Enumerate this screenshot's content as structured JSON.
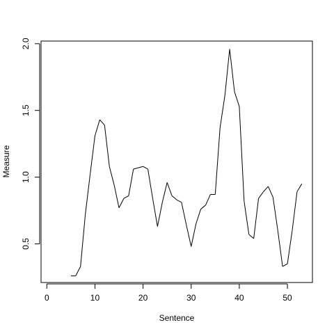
{
  "chart_data": {
    "type": "line",
    "title": "",
    "xlabel": "Sentence",
    "ylabel": "Measure",
    "xlim": [
      -1.2,
      55.2
    ],
    "ylim": [
      0.21,
      2.02
    ],
    "x_ticks": [
      0,
      10,
      20,
      30,
      40,
      50
    ],
    "x_tick_labels": [
      "0",
      "10",
      "20",
      "30",
      "40",
      "50"
    ],
    "y_ticks": [
      0.5,
      1.0,
      1.5,
      2.0
    ],
    "y_tick_labels": [
      "0.5",
      "1.0",
      "1.5",
      "2.0"
    ],
    "grid": false,
    "legend": "none",
    "line_color": "#000000",
    "x": [
      5,
      6,
      7,
      8,
      9,
      10,
      11,
      12,
      13,
      14,
      15,
      16,
      17,
      18,
      19,
      20,
      21,
      22,
      23,
      24,
      25,
      26,
      27,
      28,
      29,
      30,
      31,
      32,
      33,
      34,
      35,
      36,
      37,
      38,
      39,
      40,
      41,
      42,
      43,
      44,
      45,
      46,
      47,
      48,
      49,
      50,
      51,
      52,
      53
    ],
    "y": [
      0.26,
      0.26,
      0.33,
      0.72,
      1.02,
      1.31,
      1.43,
      1.39,
      1.08,
      0.94,
      0.77,
      0.84,
      0.86,
      1.06,
      1.07,
      1.08,
      1.06,
      0.84,
      0.63,
      0.81,
      0.96,
      0.86,
      0.83,
      0.81,
      0.64,
      0.48,
      0.65,
      0.76,
      0.79,
      0.87,
      0.87,
      1.37,
      1.61,
      1.96,
      1.64,
      1.53,
      0.82,
      0.57,
      0.54,
      0.84,
      0.89,
      0.93,
      0.85,
      0.6,
      0.33,
      0.35,
      0.6,
      0.89,
      0.95
    ]
  }
}
